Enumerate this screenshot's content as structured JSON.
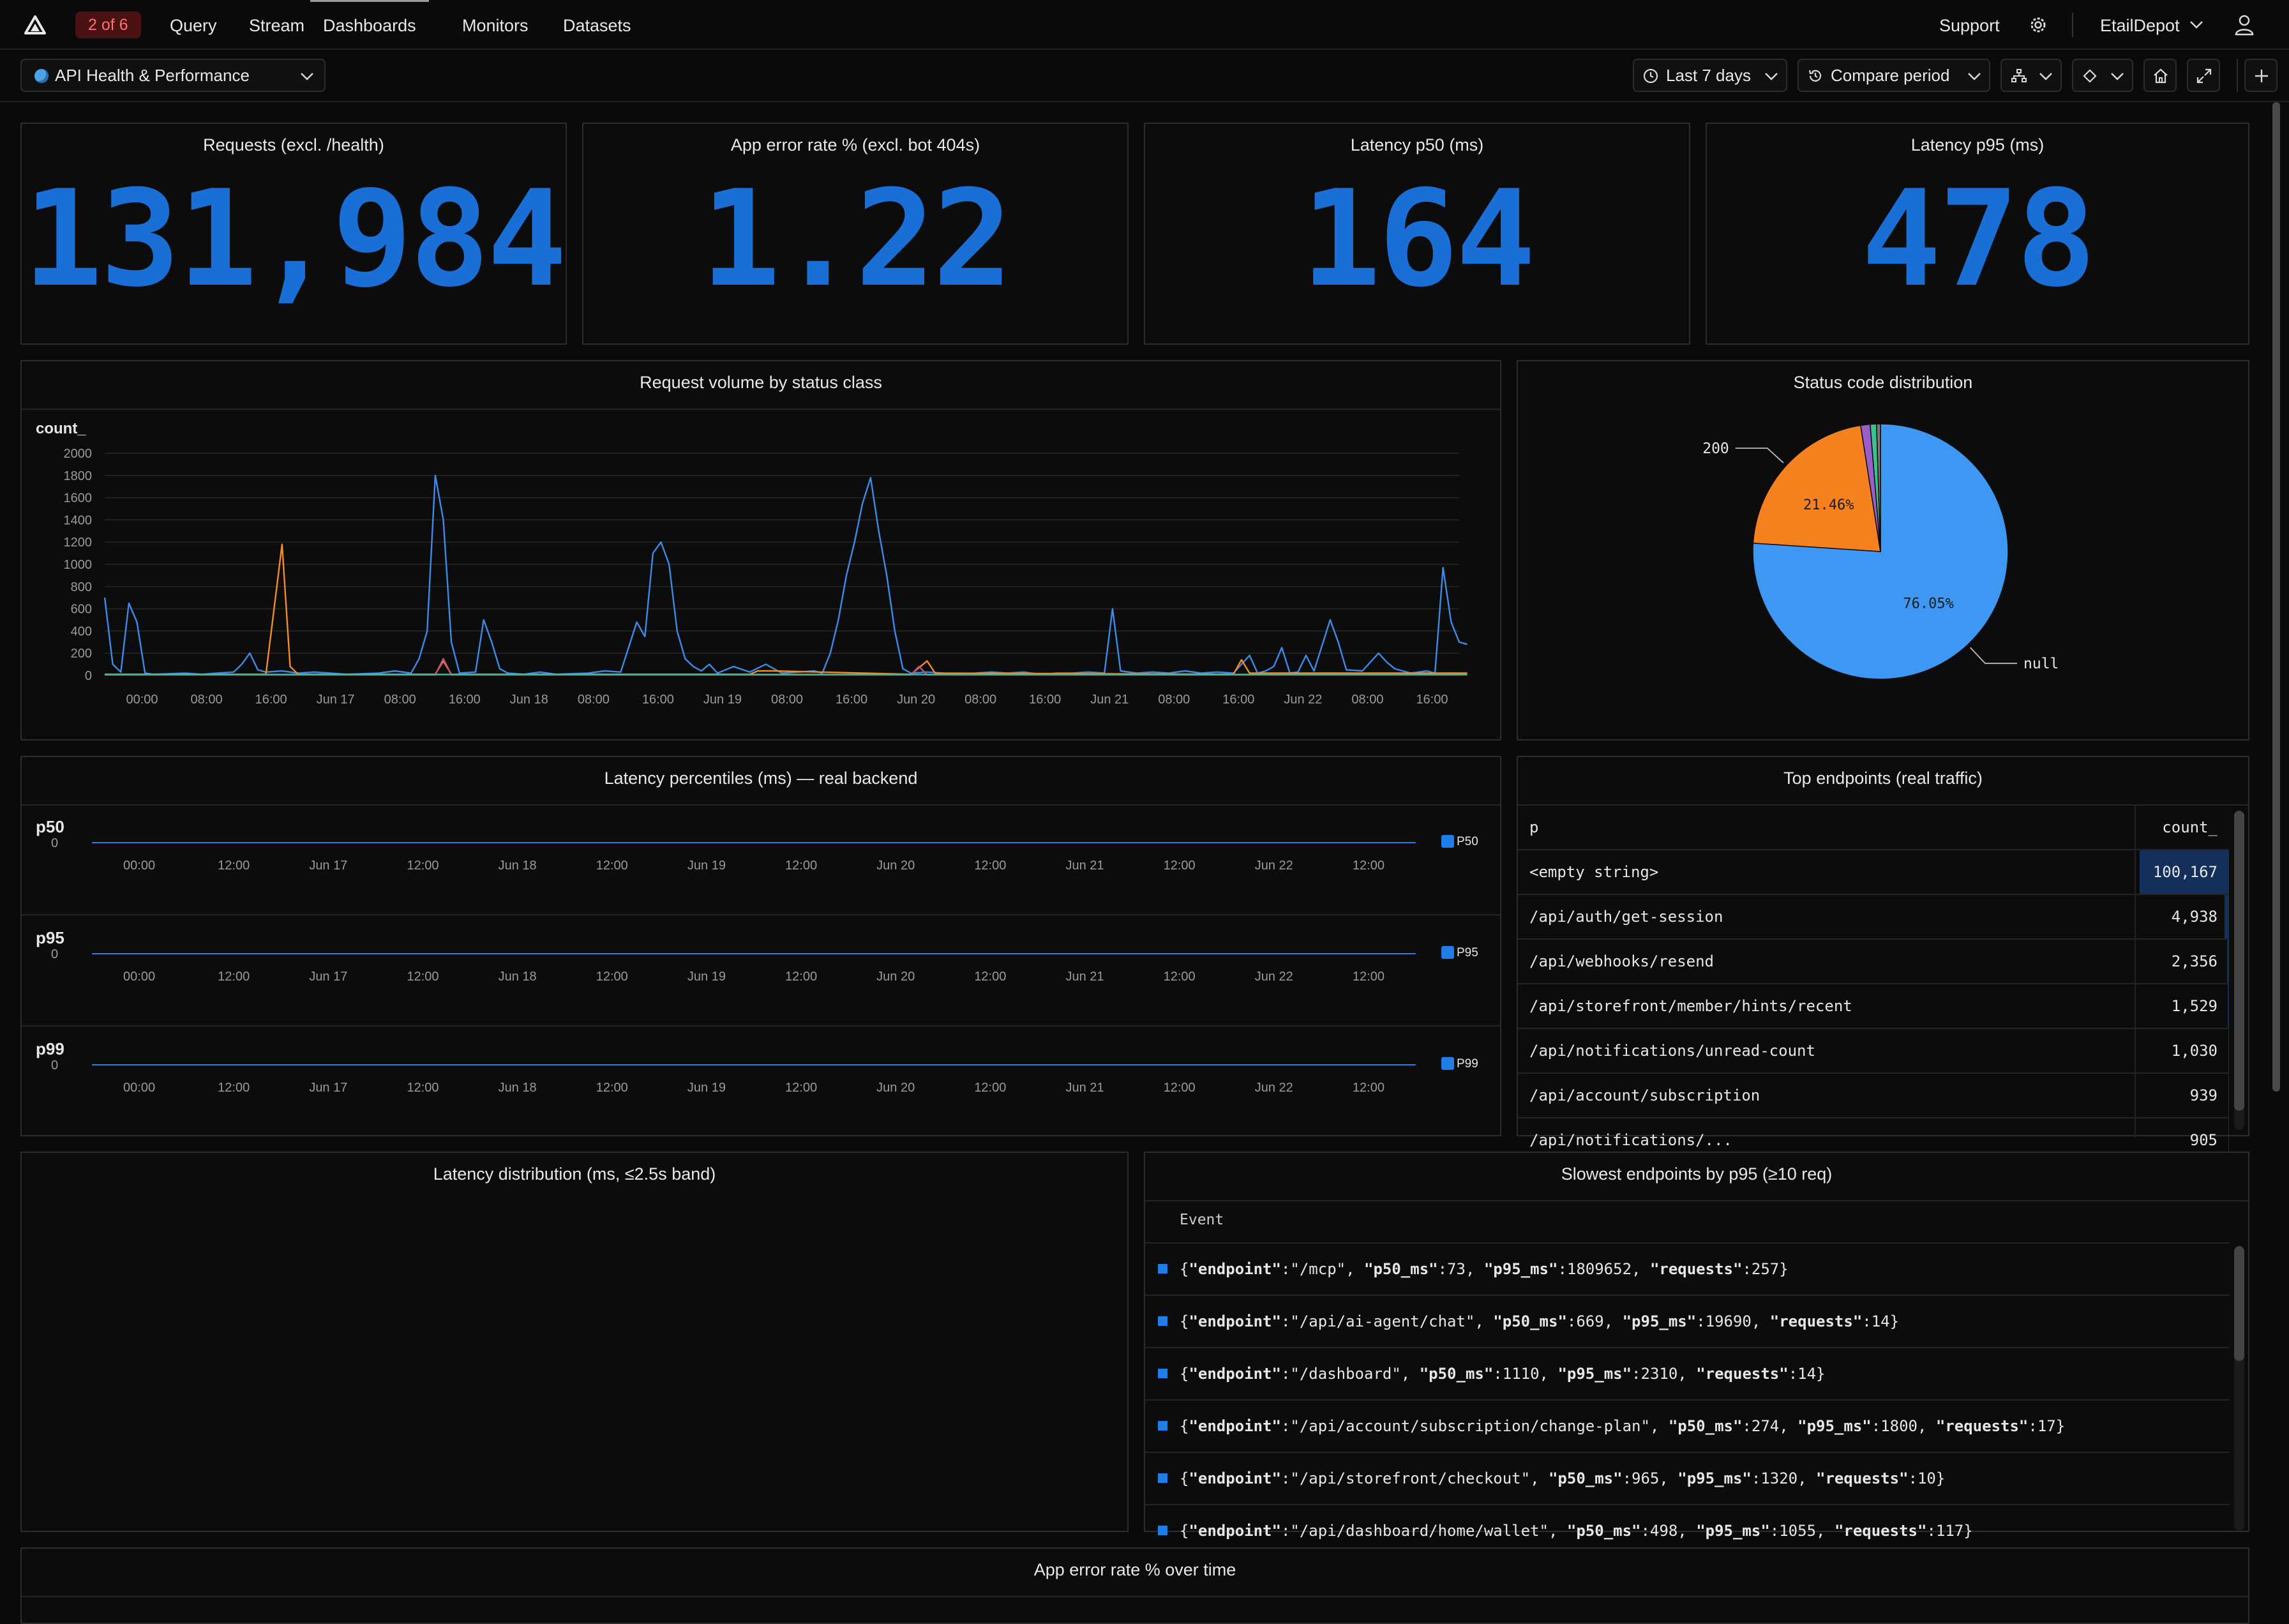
{
  "nav": {
    "badge": "2 of 6",
    "items": [
      "Query",
      "Stream",
      "Dashboards",
      "Monitors",
      "Datasets"
    ],
    "support": "Support",
    "org": "EtailDepot"
  },
  "toolbar": {
    "dashboard_name": "API Health & Performance",
    "time_range": "Last 7 days",
    "compare": "Compare period"
  },
  "stats": [
    {
      "title": "Requests (excl. /health)",
      "value": "131,984"
    },
    {
      "title": "App error rate % (excl. bot 404s)",
      "value": "1.22"
    },
    {
      "title": "Latency p50 (ms)",
      "value": "164"
    },
    {
      "title": "Latency p95 (ms)",
      "value": "478"
    }
  ],
  "colors": {
    "accent": "#1a6fd6",
    "orange": "#f28c28",
    "pie_blue": "#3d97f3",
    "badge_red": "#ff7070"
  },
  "chart_data": [
    {
      "type": "line",
      "title": "Request volume by status class",
      "ylabel": "count_",
      "ylim": [
        0,
        2000
      ],
      "yticks": [
        0,
        200,
        400,
        600,
        800,
        1000,
        1200,
        1400,
        1600,
        1800,
        2000
      ],
      "xticks": [
        "00:00",
        "08:00",
        "16:00",
        "Jun 17",
        "08:00",
        "16:00",
        "Jun 18",
        "08:00",
        "16:00",
        "Jun 19",
        "08:00",
        "16:00",
        "Jun 20",
        "08:00",
        "16:00",
        "Jun 21",
        "08:00",
        "16:00",
        "Jun 22",
        "08:00",
        "16:00"
      ],
      "x_hours_span": 168,
      "series": [
        {
          "color": "#3d8be8",
          "points": [
            [
              0,
              700
            ],
            [
              1,
              100
            ],
            [
              2,
              30
            ],
            [
              3,
              650
            ],
            [
              4,
              480
            ],
            [
              5,
              20
            ],
            [
              6,
              10
            ],
            [
              8,
              15
            ],
            [
              10,
              20
            ],
            [
              12,
              10
            ],
            [
              14,
              20
            ],
            [
              16,
              30
            ],
            [
              17,
              100
            ],
            [
              18,
              200
            ],
            [
              19,
              50
            ],
            [
              20,
              30
            ],
            [
              22,
              40
            ],
            [
              24,
              20
            ],
            [
              26,
              30
            ],
            [
              28,
              20
            ],
            [
              30,
              10
            ],
            [
              34,
              20
            ],
            [
              36,
              40
            ],
            [
              38,
              20
            ],
            [
              39,
              150
            ],
            [
              40,
              400
            ],
            [
              41,
              1800
            ],
            [
              42,
              1400
            ],
            [
              43,
              300
            ],
            [
              44,
              20
            ],
            [
              46,
              30
            ],
            [
              47,
              500
            ],
            [
              48,
              300
            ],
            [
              49,
              60
            ],
            [
              50,
              20
            ],
            [
              52,
              10
            ],
            [
              54,
              30
            ],
            [
              56,
              10
            ],
            [
              60,
              20
            ],
            [
              62,
              40
            ],
            [
              64,
              30
            ],
            [
              66,
              480
            ],
            [
              67,
              350
            ],
            [
              68,
              1100
            ],
            [
              69,
              1200
            ],
            [
              70,
              1000
            ],
            [
              71,
              400
            ],
            [
              72,
              150
            ],
            [
              73,
              80
            ],
            [
              74,
              40
            ],
            [
              75,
              100
            ],
            [
              76,
              20
            ],
            [
              78,
              80
            ],
            [
              80,
              30
            ],
            [
              82,
              100
            ],
            [
              84,
              20
            ],
            [
              86,
              30
            ],
            [
              88,
              40
            ],
            [
              89,
              20
            ],
            [
              90,
              200
            ],
            [
              91,
              500
            ],
            [
              92,
              900
            ],
            [
              93,
              1200
            ],
            [
              94,
              1550
            ],
            [
              95,
              1780
            ],
            [
              96,
              1300
            ],
            [
              97,
              900
            ],
            [
              98,
              400
            ],
            [
              99,
              60
            ],
            [
              100,
              20
            ],
            [
              102,
              30
            ],
            [
              104,
              20
            ],
            [
              106,
              10
            ],
            [
              108,
              20
            ],
            [
              110,
              30
            ],
            [
              112,
              20
            ],
            [
              114,
              30
            ],
            [
              116,
              10
            ],
            [
              118,
              20
            ],
            [
              120,
              20
            ],
            [
              122,
              30
            ],
            [
              124,
              20
            ],
            [
              125,
              600
            ],
            [
              126,
              40
            ],
            [
              128,
              20
            ],
            [
              130,
              30
            ],
            [
              132,
              20
            ],
            [
              134,
              40
            ],
            [
              136,
              20
            ],
            [
              138,
              30
            ],
            [
              140,
              20
            ],
            [
              142,
              180
            ],
            [
              143,
              20
            ],
            [
              144,
              40
            ],
            [
              145,
              80
            ],
            [
              146,
              250
            ],
            [
              147,
              20
            ],
            [
              148,
              30
            ],
            [
              149,
              180
            ],
            [
              150,
              40
            ],
            [
              152,
              500
            ],
            [
              153,
              300
            ],
            [
              154,
              50
            ],
            [
              156,
              40
            ],
            [
              158,
              200
            ],
            [
              159,
              120
            ],
            [
              160,
              60
            ],
            [
              162,
              20
            ],
            [
              164,
              40
            ],
            [
              165,
              20
            ],
            [
              166,
              970
            ],
            [
              167,
              480
            ],
            [
              168,
              300
            ],
            [
              169,
              280
            ]
          ]
        },
        {
          "color": "#f28c28",
          "points": [
            [
              0,
              10
            ],
            [
              20,
              10
            ],
            [
              22,
              1180
            ],
            [
              23,
              80
            ],
            [
              24,
              10
            ],
            [
              41,
              10
            ],
            [
              42,
              130
            ],
            [
              43,
              10
            ],
            [
              80,
              10
            ],
            [
              81,
              40
            ],
            [
              83,
              40
            ],
            [
              100,
              10
            ],
            [
              102,
              130
            ],
            [
              103,
              20
            ],
            [
              140,
              10
            ],
            [
              141,
              140
            ],
            [
              142,
              20
            ],
            [
              169,
              20
            ]
          ]
        },
        {
          "color": "#c0507a",
          "points": [
            [
              0,
              5
            ],
            [
              41,
              5
            ],
            [
              42,
              150
            ],
            [
              43,
              5
            ],
            [
              100,
              5
            ],
            [
              101,
              80
            ],
            [
              102,
              5
            ],
            [
              169,
              5
            ]
          ]
        },
        {
          "color": "#3cc08c",
          "points": [
            [
              0,
              8
            ],
            [
              169,
              8
            ]
          ]
        }
      ]
    },
    {
      "type": "pie",
      "title": "Status code distribution",
      "slices": [
        {
          "label": "null",
          "percent": 76.05,
          "display": "76.05%",
          "color": "#3d97f3"
        },
        {
          "label": "200",
          "percent": 21.46,
          "display": "21.46%",
          "color": "#f5821f"
        },
        {
          "label": "",
          "percent": 1.2,
          "color": "#9a5ec8"
        },
        {
          "label": "",
          "percent": 0.8,
          "color": "#3cc08c"
        },
        {
          "label": "",
          "percent": 0.49,
          "color": "#7a7a7a"
        }
      ]
    },
    {
      "type": "line",
      "title": "Latency percentiles (ms) — real backend",
      "xticks": [
        "00:00",
        "12:00",
        "Jun 17",
        "12:00",
        "Jun 18",
        "12:00",
        "Jun 19",
        "12:00",
        "Jun 20",
        "12:00",
        "Jun 21",
        "12:00",
        "Jun 22",
        "12:00"
      ],
      "series": [
        {
          "name": "P50",
          "axis_label": "p50",
          "y_tick": "0",
          "values": [
            0
          ]
        },
        {
          "name": "P95",
          "axis_label": "p95",
          "y_tick": "0",
          "values": [
            0
          ]
        },
        {
          "name": "P99",
          "axis_label": "p99",
          "y_tick": "0",
          "values": [
            0
          ]
        }
      ]
    }
  ],
  "top_endpoints": {
    "title": "Top endpoints (real traffic)",
    "col_p": "p",
    "col_count": "count_",
    "rows": [
      {
        "p": "<empty string>",
        "count": "100,167",
        "frac": 1.0
      },
      {
        "p": "/api/auth/get-session",
        "count": "4,938",
        "frac": 0.049
      },
      {
        "p": "/api/webhooks/resend",
        "count": "2,356",
        "frac": 0.024
      },
      {
        "p": "/api/storefront/member/hints/recent",
        "count": "1,529",
        "frac": 0.015
      },
      {
        "p": "/api/notifications/unread-count",
        "count": "1,030",
        "frac": 0.01
      },
      {
        "p": "/api/account/subscription",
        "count": "939",
        "frac": 0.009
      },
      {
        "p": "/api/notifications/...",
        "count": "905",
        "frac": 0.009
      }
    ]
  },
  "latency_distribution": {
    "title": "Latency distribution (ms, ≤2.5s band)"
  },
  "slowest": {
    "title": "Slowest endpoints by p95 (≥10 req)",
    "col": "Event",
    "rows": [
      {
        "endpoint": "\"/mcp\"",
        "p50_ms": "73",
        "p95_ms": "1809652",
        "requests": "257"
      },
      {
        "endpoint": "\"/api/ai-agent/chat\"",
        "p50_ms": "669",
        "p95_ms": "19690",
        "requests": "14"
      },
      {
        "endpoint": "\"/dashboard\"",
        "p50_ms": "1110",
        "p95_ms": "2310",
        "requests": "14"
      },
      {
        "endpoint": "\"/api/account/subscription/change-plan\"",
        "p50_ms": "274",
        "p95_ms": "1800",
        "requests": "17"
      },
      {
        "endpoint": "\"/api/storefront/checkout\"",
        "p50_ms": "965",
        "p95_ms": "1320",
        "requests": "10"
      },
      {
        "endpoint": "\"/api/dashboard/home/wallet\"",
        "p50_ms": "498",
        "p95_ms": "1055",
        "requests": "117"
      }
    ]
  },
  "error_rate_panel": {
    "title": "App error rate % over time"
  }
}
